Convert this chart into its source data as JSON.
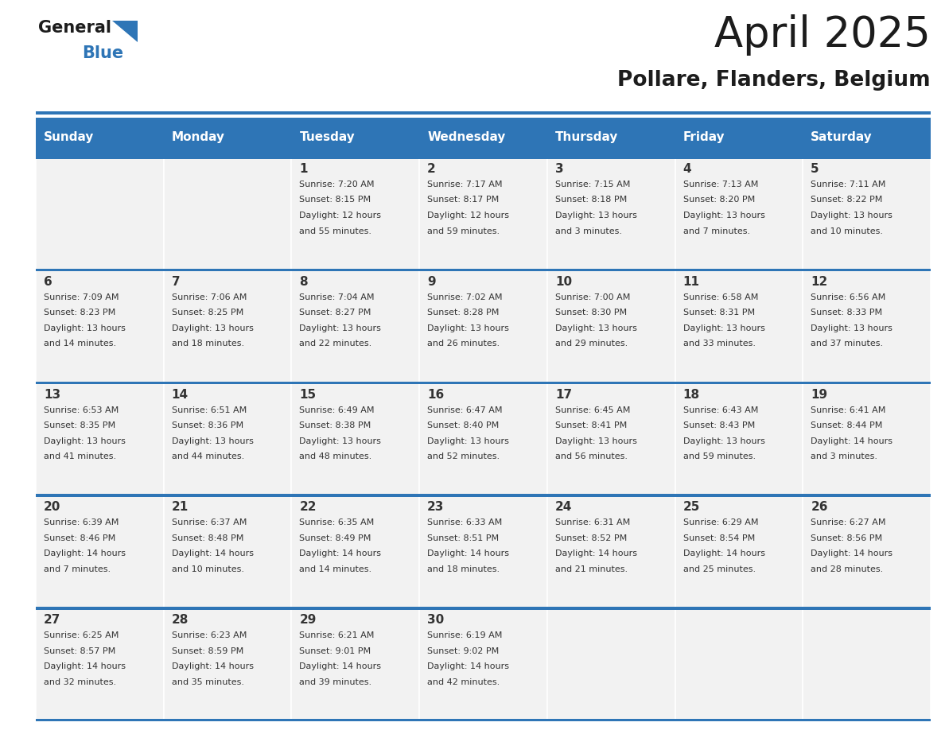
{
  "title": "April 2025",
  "subtitle": "Pollare, Flanders, Belgium",
  "header_bg": "#2E75B6",
  "header_text_color": "#FFFFFF",
  "cell_bg": "#F2F2F2",
  "text_color": "#333333",
  "border_color": "#2E75B6",
  "days_of_week": [
    "Sunday",
    "Monday",
    "Tuesday",
    "Wednesday",
    "Thursday",
    "Friday",
    "Saturday"
  ],
  "calendar": [
    [
      {
        "day": "",
        "lines": []
      },
      {
        "day": "",
        "lines": []
      },
      {
        "day": "1",
        "lines": [
          "Sunrise: 7:20 AM",
          "Sunset: 8:15 PM",
          "Daylight: 12 hours",
          "and 55 minutes."
        ]
      },
      {
        "day": "2",
        "lines": [
          "Sunrise: 7:17 AM",
          "Sunset: 8:17 PM",
          "Daylight: 12 hours",
          "and 59 minutes."
        ]
      },
      {
        "day": "3",
        "lines": [
          "Sunrise: 7:15 AM",
          "Sunset: 8:18 PM",
          "Daylight: 13 hours",
          "and 3 minutes."
        ]
      },
      {
        "day": "4",
        "lines": [
          "Sunrise: 7:13 AM",
          "Sunset: 8:20 PM",
          "Daylight: 13 hours",
          "and 7 minutes."
        ]
      },
      {
        "day": "5",
        "lines": [
          "Sunrise: 7:11 AM",
          "Sunset: 8:22 PM",
          "Daylight: 13 hours",
          "and 10 minutes."
        ]
      }
    ],
    [
      {
        "day": "6",
        "lines": [
          "Sunrise: 7:09 AM",
          "Sunset: 8:23 PM",
          "Daylight: 13 hours",
          "and 14 minutes."
        ]
      },
      {
        "day": "7",
        "lines": [
          "Sunrise: 7:06 AM",
          "Sunset: 8:25 PM",
          "Daylight: 13 hours",
          "and 18 minutes."
        ]
      },
      {
        "day": "8",
        "lines": [
          "Sunrise: 7:04 AM",
          "Sunset: 8:27 PM",
          "Daylight: 13 hours",
          "and 22 minutes."
        ]
      },
      {
        "day": "9",
        "lines": [
          "Sunrise: 7:02 AM",
          "Sunset: 8:28 PM",
          "Daylight: 13 hours",
          "and 26 minutes."
        ]
      },
      {
        "day": "10",
        "lines": [
          "Sunrise: 7:00 AM",
          "Sunset: 8:30 PM",
          "Daylight: 13 hours",
          "and 29 minutes."
        ]
      },
      {
        "day": "11",
        "lines": [
          "Sunrise: 6:58 AM",
          "Sunset: 8:31 PM",
          "Daylight: 13 hours",
          "and 33 minutes."
        ]
      },
      {
        "day": "12",
        "lines": [
          "Sunrise: 6:56 AM",
          "Sunset: 8:33 PM",
          "Daylight: 13 hours",
          "and 37 minutes."
        ]
      }
    ],
    [
      {
        "day": "13",
        "lines": [
          "Sunrise: 6:53 AM",
          "Sunset: 8:35 PM",
          "Daylight: 13 hours",
          "and 41 minutes."
        ]
      },
      {
        "day": "14",
        "lines": [
          "Sunrise: 6:51 AM",
          "Sunset: 8:36 PM",
          "Daylight: 13 hours",
          "and 44 minutes."
        ]
      },
      {
        "day": "15",
        "lines": [
          "Sunrise: 6:49 AM",
          "Sunset: 8:38 PM",
          "Daylight: 13 hours",
          "and 48 minutes."
        ]
      },
      {
        "day": "16",
        "lines": [
          "Sunrise: 6:47 AM",
          "Sunset: 8:40 PM",
          "Daylight: 13 hours",
          "and 52 minutes."
        ]
      },
      {
        "day": "17",
        "lines": [
          "Sunrise: 6:45 AM",
          "Sunset: 8:41 PM",
          "Daylight: 13 hours",
          "and 56 minutes."
        ]
      },
      {
        "day": "18",
        "lines": [
          "Sunrise: 6:43 AM",
          "Sunset: 8:43 PM",
          "Daylight: 13 hours",
          "and 59 minutes."
        ]
      },
      {
        "day": "19",
        "lines": [
          "Sunrise: 6:41 AM",
          "Sunset: 8:44 PM",
          "Daylight: 14 hours",
          "and 3 minutes."
        ]
      }
    ],
    [
      {
        "day": "20",
        "lines": [
          "Sunrise: 6:39 AM",
          "Sunset: 8:46 PM",
          "Daylight: 14 hours",
          "and 7 minutes."
        ]
      },
      {
        "day": "21",
        "lines": [
          "Sunrise: 6:37 AM",
          "Sunset: 8:48 PM",
          "Daylight: 14 hours",
          "and 10 minutes."
        ]
      },
      {
        "day": "22",
        "lines": [
          "Sunrise: 6:35 AM",
          "Sunset: 8:49 PM",
          "Daylight: 14 hours",
          "and 14 minutes."
        ]
      },
      {
        "day": "23",
        "lines": [
          "Sunrise: 6:33 AM",
          "Sunset: 8:51 PM",
          "Daylight: 14 hours",
          "and 18 minutes."
        ]
      },
      {
        "day": "24",
        "lines": [
          "Sunrise: 6:31 AM",
          "Sunset: 8:52 PM",
          "Daylight: 14 hours",
          "and 21 minutes."
        ]
      },
      {
        "day": "25",
        "lines": [
          "Sunrise: 6:29 AM",
          "Sunset: 8:54 PM",
          "Daylight: 14 hours",
          "and 25 minutes."
        ]
      },
      {
        "day": "26",
        "lines": [
          "Sunrise: 6:27 AM",
          "Sunset: 8:56 PM",
          "Daylight: 14 hours",
          "and 28 minutes."
        ]
      }
    ],
    [
      {
        "day": "27",
        "lines": [
          "Sunrise: 6:25 AM",
          "Sunset: 8:57 PM",
          "Daylight: 14 hours",
          "and 32 minutes."
        ]
      },
      {
        "day": "28",
        "lines": [
          "Sunrise: 6:23 AM",
          "Sunset: 8:59 PM",
          "Daylight: 14 hours",
          "and 35 minutes."
        ]
      },
      {
        "day": "29",
        "lines": [
          "Sunrise: 6:21 AM",
          "Sunset: 9:01 PM",
          "Daylight: 14 hours",
          "and 39 minutes."
        ]
      },
      {
        "day": "30",
        "lines": [
          "Sunrise: 6:19 AM",
          "Sunset: 9:02 PM",
          "Daylight: 14 hours",
          "and 42 minutes."
        ]
      },
      {
        "day": "",
        "lines": []
      },
      {
        "day": "",
        "lines": []
      },
      {
        "day": "",
        "lines": []
      }
    ]
  ],
  "fig_width": 11.88,
  "fig_height": 9.18,
  "dpi": 100
}
